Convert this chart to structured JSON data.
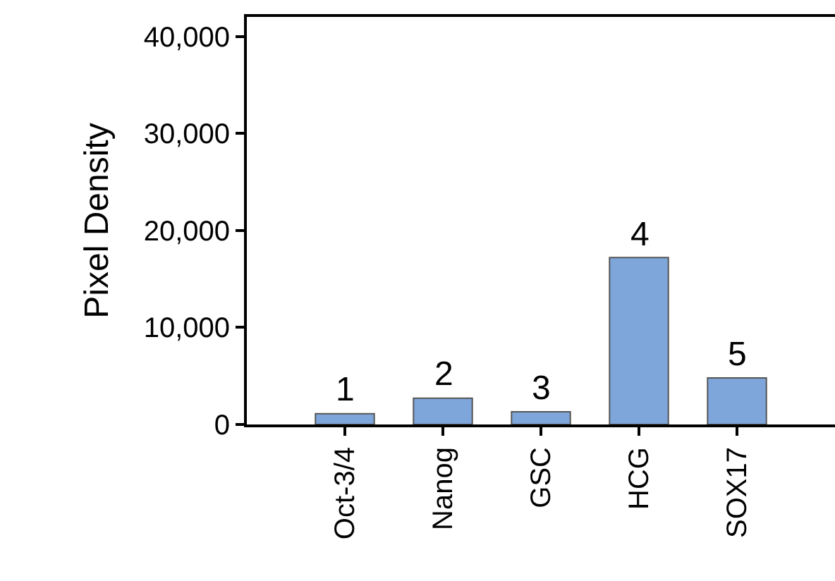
{
  "chart_data": {
    "type": "bar",
    "ylabel": "Pixel Density",
    "categories": [
      "Oct-3/4",
      "Nanog",
      "GSC",
      "HCG",
      "SOX17"
    ],
    "values": [
      1100,
      2700,
      1300,
      17200,
      4800
    ],
    "color": "#7fa6db",
    "ylim": [
      0,
      42000
    ],
    "yticks": [
      {
        "value": 0,
        "label": "0"
      },
      {
        "value": 10000,
        "label": "10,000"
      },
      {
        "value": 20000,
        "label": "20,000"
      },
      {
        "value": 30000,
        "label": "30,000"
      },
      {
        "value": 40000,
        "label": "40,000"
      }
    ],
    "grid": false,
    "annotations": [
      {
        "text": "1",
        "x": "Oct-3/4",
        "y": 1100
      },
      {
        "text": "2",
        "x": "Nanog",
        "y": 2700
      },
      {
        "text": "3",
        "x": "GSC",
        "y": 1300
      },
      {
        "text": "4",
        "x": "HCG",
        "y": 17200
      },
      {
        "text": "5",
        "x": "SOX17",
        "y": 4800
      }
    ]
  }
}
